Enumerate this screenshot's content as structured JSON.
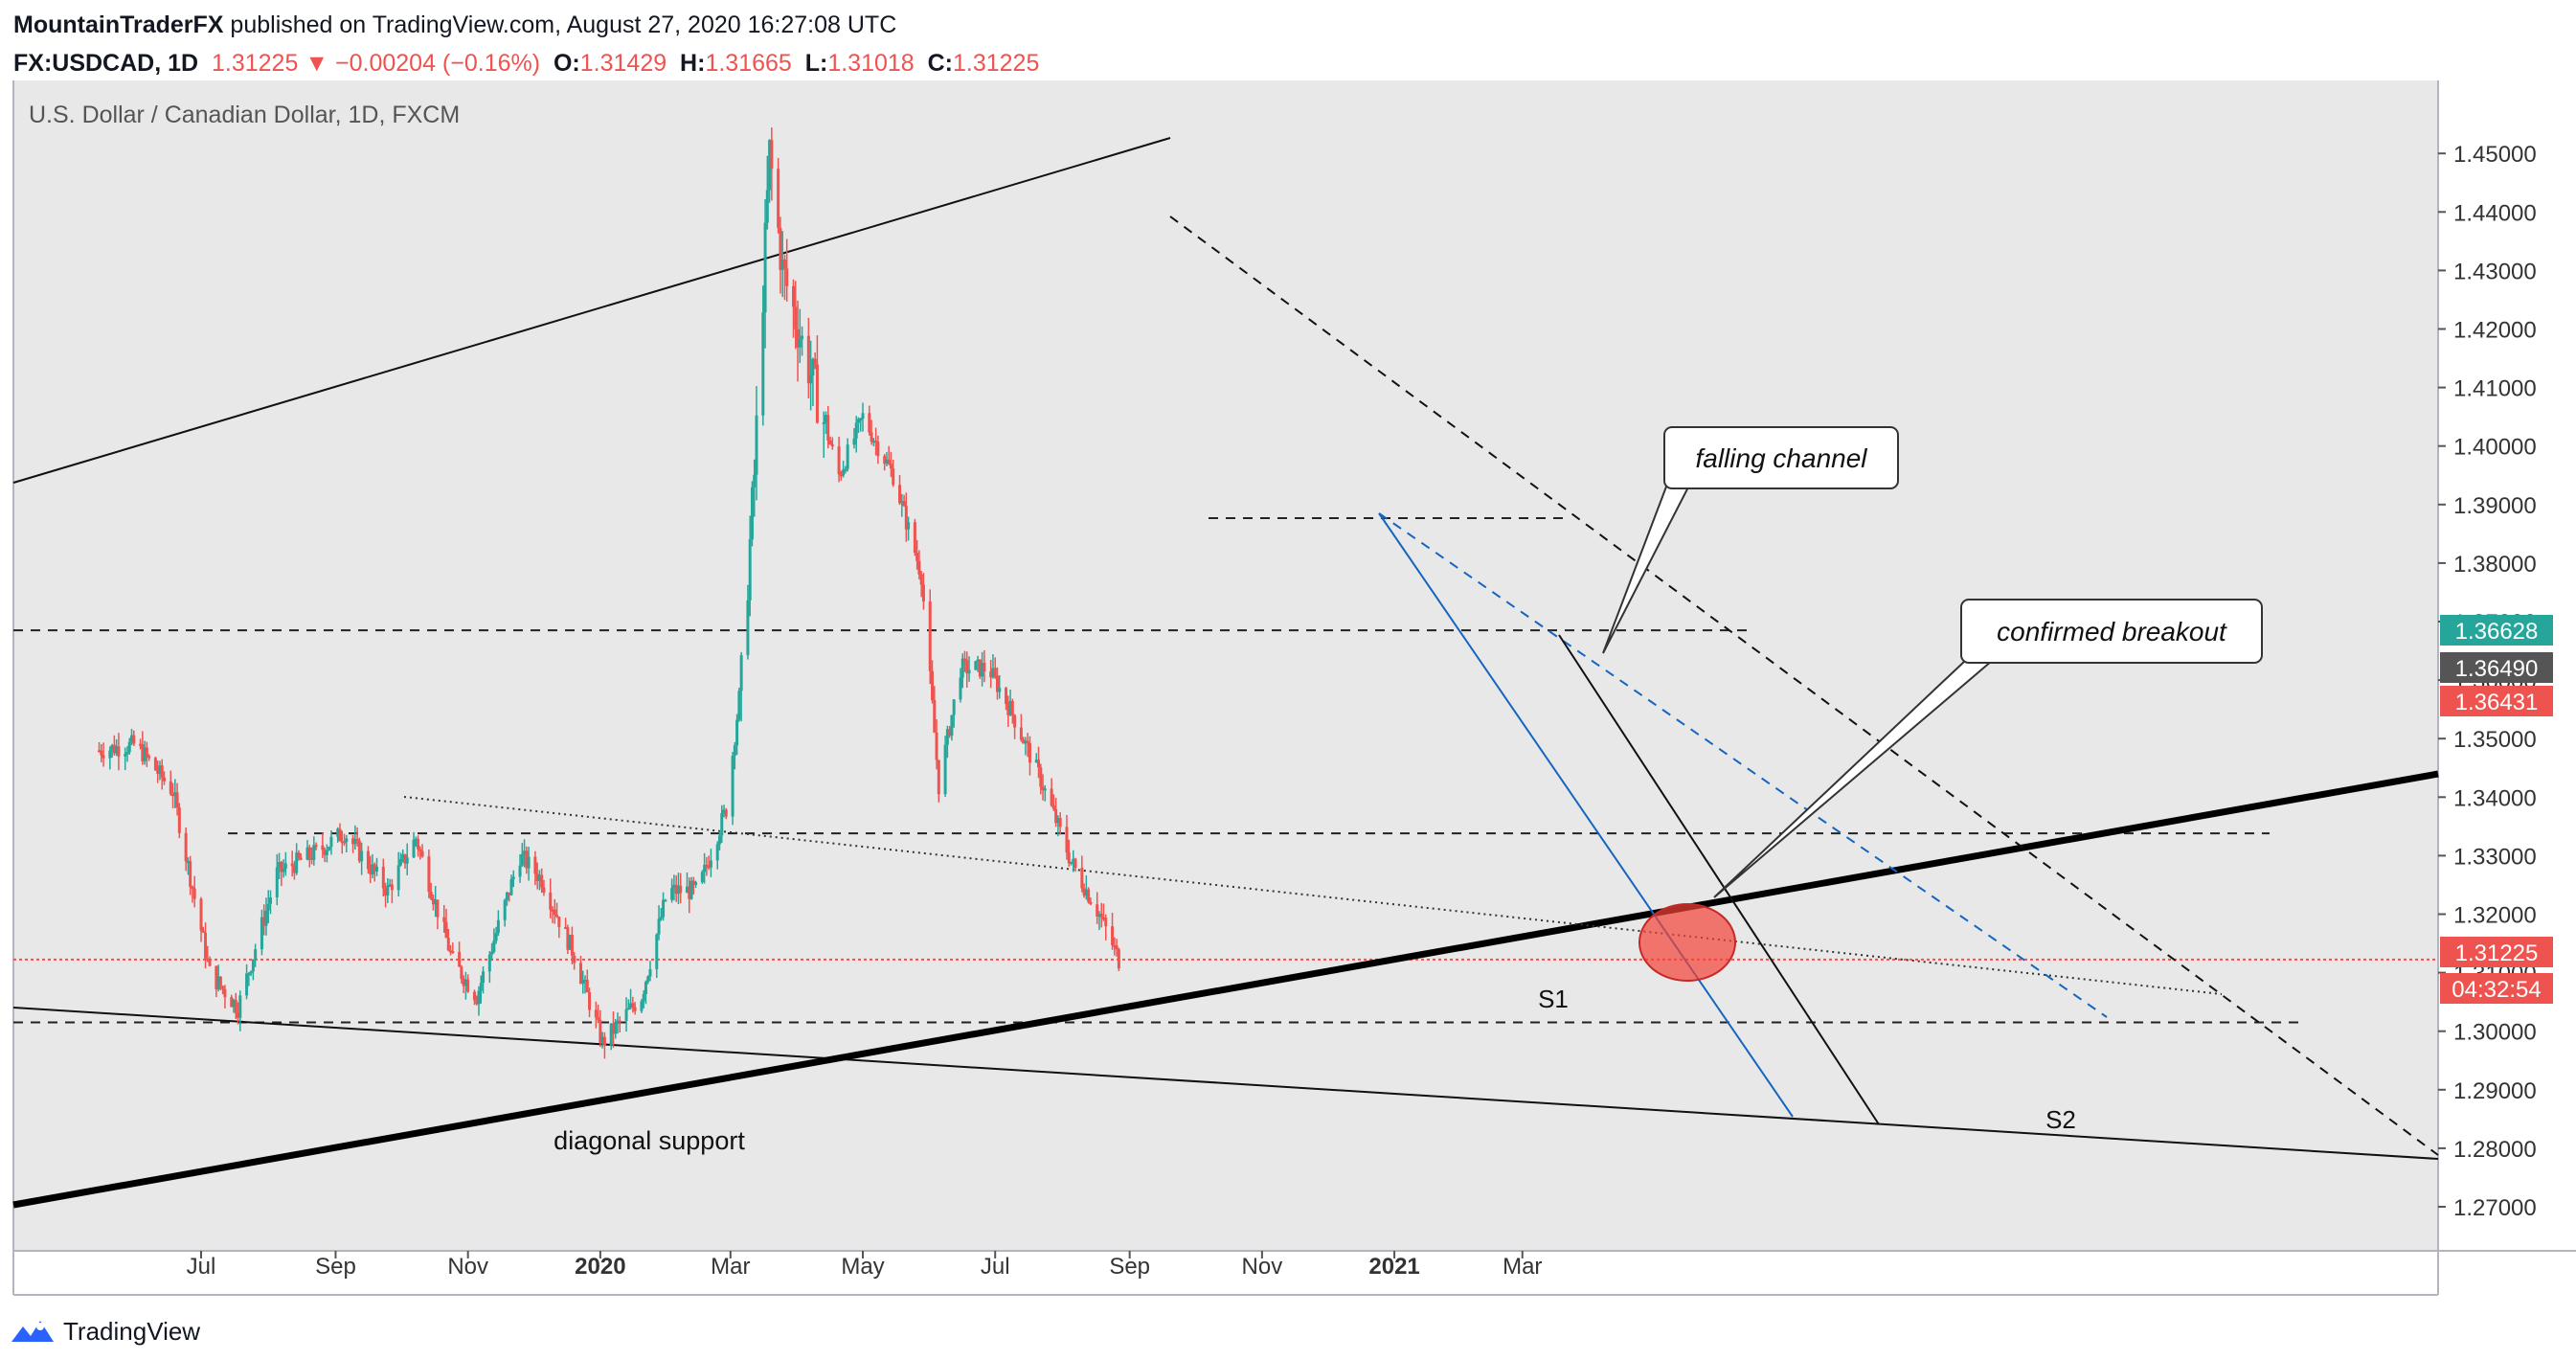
{
  "header": {
    "author": "MountainTraderFX",
    "published": "published on TradingView.com, August 27, 2020 16:27:08 UTC",
    "symbol": "FX:USDCAD, 1D",
    "last": "1.31225",
    "change_arrow": "▼",
    "change": "−0.00204 (−0.16%)",
    "o_label": "O:",
    "o": "1.31429",
    "h_label": "H:",
    "h": "1.31665",
    "l_label": "L:",
    "l": "1.31018",
    "c_label": "C:",
    "c": "1.31225"
  },
  "chart_data": {
    "type": "candlestick",
    "title": "U.S. Dollar / Canadian Dollar, 1D, FXCM",
    "x_tick_labels": [
      "Jul",
      "Sep",
      "Nov",
      "2020",
      "Mar",
      "May",
      "Jul",
      "Sep",
      "Nov",
      "2021",
      "Mar"
    ],
    "y_tick_labels": [
      "1.27000",
      "1.28000",
      "1.29000",
      "1.30000",
      "1.31000",
      "1.32000",
      "1.33000",
      "1.34000",
      "1.35000",
      "1.36000",
      "1.37000",
      "1.38000",
      "1.39000",
      "1.40000",
      "1.41000",
      "1.42000",
      "1.43000",
      "1.44000",
      "1.45000"
    ],
    "ylim": [
      1.262,
      1.465
    ],
    "price_anchors": [
      [
        "2019-05-15",
        1.348
      ],
      [
        "2019-06-01",
        1.349
      ],
      [
        "2019-06-18",
        1.341
      ],
      [
        "2019-07-05",
        1.31
      ],
      [
        "2019-07-18",
        1.304
      ],
      [
        "2019-08-05",
        1.327
      ],
      [
        "2019-08-25",
        1.331
      ],
      [
        "2019-09-05",
        1.334
      ],
      [
        "2019-09-25",
        1.324
      ],
      [
        "2019-10-08",
        1.333
      ],
      [
        "2019-10-25",
        1.312
      ],
      [
        "2019-11-05",
        1.306
      ],
      [
        "2019-11-25",
        1.33
      ],
      [
        "2019-12-05",
        1.326
      ],
      [
        "2019-12-20",
        1.313
      ],
      [
        "2020-01-02",
        1.298
      ],
      [
        "2020-01-20",
        1.306
      ],
      [
        "2020-02-01",
        1.324
      ],
      [
        "2020-02-15",
        1.324
      ],
      [
        "2020-02-28",
        1.338
      ],
      [
        "2020-03-06",
        1.36
      ],
      [
        "2020-03-12",
        1.395
      ],
      [
        "2020-03-19",
        1.45
      ],
      [
        "2020-03-25",
        1.43
      ],
      [
        "2020-04-05",
        1.415
      ],
      [
        "2020-04-20",
        1.395
      ],
      [
        "2020-05-01",
        1.405
      ],
      [
        "2020-05-15",
        1.395
      ],
      [
        "2020-05-28",
        1.378
      ],
      [
        "2020-06-05",
        1.342
      ],
      [
        "2020-06-15",
        1.362
      ],
      [
        "2020-06-28",
        1.362
      ],
      [
        "2020-07-08",
        1.355
      ],
      [
        "2020-07-22",
        1.343
      ],
      [
        "2020-08-05",
        1.329
      ],
      [
        "2020-08-18",
        1.32
      ],
      [
        "2020-08-27",
        1.3122
      ]
    ],
    "horizontal_lines": [
      1.3685,
      1.3338,
      1.3015
    ],
    "current_price": 1.31225,
    "price_badges": [
      {
        "value": "1.36628",
        "color": "#26a69a"
      },
      {
        "value": "1.36490",
        "color": "#555555"
      },
      {
        "value": "1.36431",
        "color": "#ef5350"
      },
      {
        "value": "1.31225",
        "color": "#ef5350"
      },
      {
        "value": "04:32:54",
        "color": "#ef5350"
      }
    ],
    "annotations": {
      "falling_channel": "falling channel",
      "confirmed_breakout": "confirmed breakout",
      "s1": "S1",
      "s2": "S2",
      "diagonal_support": "diagonal support"
    },
    "colors": {
      "up": "#26a69a",
      "down": "#ef5350",
      "channel": "#1565c0",
      "background": "#e8e8e8"
    }
  },
  "footer": {
    "brand": "TradingView"
  }
}
